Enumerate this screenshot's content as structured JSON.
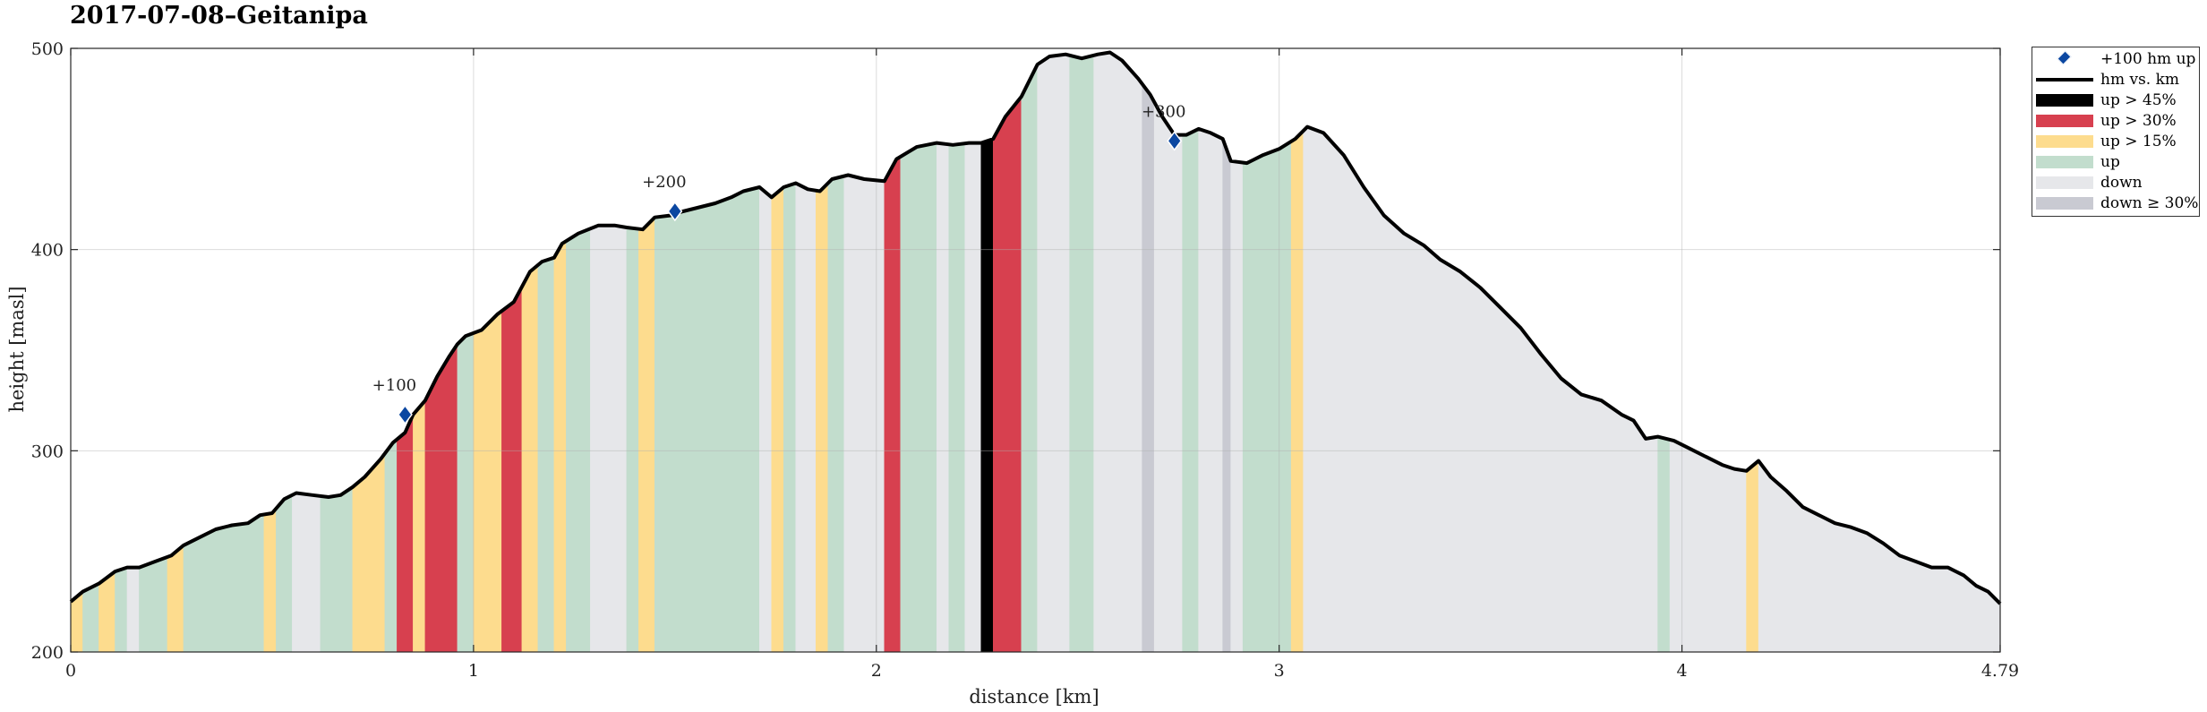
{
  "chart_data": {
    "type": "area",
    "title": "2017-07-08–Geitanipa",
    "xlabel": "distance [km]",
    "ylabel": "height [masl]",
    "xlim": [
      0,
      4.79
    ],
    "ylim": [
      200,
      500
    ],
    "xticks": [
      "0",
      "1",
      "2",
      "3",
      "4",
      "4.79"
    ],
    "xtick_values": [
      0,
      1,
      2,
      3,
      4,
      4.79
    ],
    "yticks": [
      "200",
      "300",
      "400",
      "500"
    ],
    "ytick_values": [
      200,
      300,
      400,
      500
    ],
    "grid": true,
    "legend_position": "outside-top-right",
    "colors": {
      "up45": "#000000",
      "up30": "#d7404f",
      "up15": "#fddc8e",
      "up": "#c2ddcd",
      "down": "#e6e7ea",
      "down30": "#c9cad2",
      "line": "#000000",
      "marker": "#0b47a1"
    },
    "legend": [
      {
        "key": "marker",
        "label": "+100 hm up"
      },
      {
        "key": "line",
        "label": "hm vs. km"
      },
      {
        "key": "up45",
        "label": "up > 45%"
      },
      {
        "key": "up30",
        "label": "up > 30%"
      },
      {
        "key": "up15",
        "label": "up > 15%"
      },
      {
        "key": "up",
        "label": "up"
      },
      {
        "key": "down",
        "label": "down"
      },
      {
        "key": "down30",
        "label": "down ≥ 30%"
      }
    ],
    "profile": [
      [
        0,
        225
      ],
      [
        0.03,
        230
      ],
      [
        0.07,
        234
      ],
      [
        0.11,
        240
      ],
      [
        0.14,
        242
      ],
      [
        0.17,
        242
      ],
      [
        0.21,
        245
      ],
      [
        0.25,
        248
      ],
      [
        0.28,
        253
      ],
      [
        0.32,
        257
      ],
      [
        0.36,
        261
      ],
      [
        0.4,
        263
      ],
      [
        0.44,
        264
      ],
      [
        0.47,
        268
      ],
      [
        0.5,
        269
      ],
      [
        0.53,
        276
      ],
      [
        0.56,
        279
      ],
      [
        0.6,
        278
      ],
      [
        0.64,
        277
      ],
      [
        0.67,
        278
      ],
      [
        0.7,
        282
      ],
      [
        0.73,
        287
      ],
      [
        0.77,
        296
      ],
      [
        0.8,
        304
      ],
      [
        0.83,
        309
      ],
      [
        0.85,
        318
      ],
      [
        0.88,
        325
      ],
      [
        0.91,
        337
      ],
      [
        0.94,
        347
      ],
      [
        0.96,
        353
      ],
      [
        0.98,
        357
      ],
      [
        1.02,
        360
      ],
      [
        1.06,
        368
      ],
      [
        1.1,
        374
      ],
      [
        1.14,
        389
      ],
      [
        1.17,
        394
      ],
      [
        1.2,
        396
      ],
      [
        1.22,
        403
      ],
      [
        1.26,
        408
      ],
      [
        1.31,
        412
      ],
      [
        1.35,
        412
      ],
      [
        1.38,
        411
      ],
      [
        1.42,
        410
      ],
      [
        1.45,
        416
      ],
      [
        1.49,
        417
      ],
      [
        1.52,
        419
      ],
      [
        1.56,
        421
      ],
      [
        1.6,
        423
      ],
      [
        1.64,
        426
      ],
      [
        1.67,
        429
      ],
      [
        1.71,
        431
      ],
      [
        1.74,
        426
      ],
      [
        1.77,
        431
      ],
      [
        1.8,
        433
      ],
      [
        1.83,
        430
      ],
      [
        1.86,
        429
      ],
      [
        1.89,
        435
      ],
      [
        1.93,
        437
      ],
      [
        1.97,
        435
      ],
      [
        2.02,
        434
      ],
      [
        2.05,
        445
      ],
      [
        2.1,
        451
      ],
      [
        2.15,
        453
      ],
      [
        2.19,
        452
      ],
      [
        2.23,
        453
      ],
      [
        2.26,
        453
      ],
      [
        2.29,
        455
      ],
      [
        2.32,
        466
      ],
      [
        2.36,
        476
      ],
      [
        2.4,
        492
      ],
      [
        2.43,
        496
      ],
      [
        2.47,
        497
      ],
      [
        2.51,
        495
      ],
      [
        2.55,
        497
      ],
      [
        2.58,
        498
      ],
      [
        2.61,
        494
      ],
      [
        2.65,
        485
      ],
      [
        2.68,
        477
      ],
      [
        2.71,
        466
      ],
      [
        2.74,
        457
      ],
      [
        2.77,
        457
      ],
      [
        2.8,
        460
      ],
      [
        2.83,
        458
      ],
      [
        2.86,
        455
      ],
      [
        2.88,
        444
      ],
      [
        2.92,
        443
      ],
      [
        2.96,
        447
      ],
      [
        3.0,
        450
      ],
      [
        3.04,
        455
      ],
      [
        3.07,
        461
      ],
      [
        3.11,
        458
      ],
      [
        3.16,
        447
      ],
      [
        3.21,
        431
      ],
      [
        3.26,
        417
      ],
      [
        3.31,
        408
      ],
      [
        3.36,
        402
      ],
      [
        3.4,
        395
      ],
      [
        3.45,
        389
      ],
      [
        3.5,
        381
      ],
      [
        3.55,
        371
      ],
      [
        3.6,
        361
      ],
      [
        3.65,
        348
      ],
      [
        3.7,
        336
      ],
      [
        3.75,
        328
      ],
      [
        3.8,
        325
      ],
      [
        3.85,
        318
      ],
      [
        3.88,
        315
      ],
      [
        3.91,
        306
      ],
      [
        3.94,
        307
      ],
      [
        3.98,
        305
      ],
      [
        4.02,
        301
      ],
      [
        4.06,
        297
      ],
      [
        4.1,
        293
      ],
      [
        4.13,
        291
      ],
      [
        4.16,
        290
      ],
      [
        4.19,
        295
      ],
      [
        4.22,
        287
      ],
      [
        4.26,
        280
      ],
      [
        4.3,
        272
      ],
      [
        4.34,
        268
      ],
      [
        4.38,
        264
      ],
      [
        4.42,
        262
      ],
      [
        4.46,
        259
      ],
      [
        4.5,
        254
      ],
      [
        4.54,
        248
      ],
      [
        4.58,
        245
      ],
      [
        4.62,
        242
      ],
      [
        4.66,
        242
      ],
      [
        4.7,
        238
      ],
      [
        4.73,
        233
      ],
      [
        4.76,
        230
      ],
      [
        4.79,
        224
      ]
    ],
    "segments": [
      {
        "x0": 0.0,
        "x1": 0.03,
        "class": "up15"
      },
      {
        "x0": 0.03,
        "x1": 0.07,
        "class": "up"
      },
      {
        "x0": 0.07,
        "x1": 0.11,
        "class": "up15"
      },
      {
        "x0": 0.11,
        "x1": 0.14,
        "class": "up"
      },
      {
        "x0": 0.14,
        "x1": 0.17,
        "class": "down"
      },
      {
        "x0": 0.17,
        "x1": 0.24,
        "class": "up"
      },
      {
        "x0": 0.24,
        "x1": 0.28,
        "class": "up15"
      },
      {
        "x0": 0.28,
        "x1": 0.48,
        "class": "up"
      },
      {
        "x0": 0.48,
        "x1": 0.51,
        "class": "up15"
      },
      {
        "x0": 0.51,
        "x1": 0.55,
        "class": "up"
      },
      {
        "x0": 0.55,
        "x1": 0.62,
        "class": "down"
      },
      {
        "x0": 0.62,
        "x1": 0.7,
        "class": "up"
      },
      {
        "x0": 0.7,
        "x1": 0.78,
        "class": "up15"
      },
      {
        "x0": 0.78,
        "x1": 0.81,
        "class": "up"
      },
      {
        "x0": 0.81,
        "x1": 0.85,
        "class": "up30"
      },
      {
        "x0": 0.85,
        "x1": 0.88,
        "class": "up15"
      },
      {
        "x0": 0.88,
        "x1": 0.96,
        "class": "up30"
      },
      {
        "x0": 0.96,
        "x1": 1.0,
        "class": "up"
      },
      {
        "x0": 1.0,
        "x1": 1.07,
        "class": "up15"
      },
      {
        "x0": 1.07,
        "x1": 1.12,
        "class": "up30"
      },
      {
        "x0": 1.12,
        "x1": 1.16,
        "class": "up15"
      },
      {
        "x0": 1.16,
        "x1": 1.2,
        "class": "up"
      },
      {
        "x0": 1.2,
        "x1": 1.23,
        "class": "up15"
      },
      {
        "x0": 1.23,
        "x1": 1.29,
        "class": "up"
      },
      {
        "x0": 1.29,
        "x1": 1.38,
        "class": "down"
      },
      {
        "x0": 1.38,
        "x1": 1.41,
        "class": "up"
      },
      {
        "x0": 1.41,
        "x1": 1.45,
        "class": "up15"
      },
      {
        "x0": 1.45,
        "x1": 1.71,
        "class": "up"
      },
      {
        "x0": 1.71,
        "x1": 1.74,
        "class": "down"
      },
      {
        "x0": 1.74,
        "x1": 1.77,
        "class": "up15"
      },
      {
        "x0": 1.77,
        "x1": 1.8,
        "class": "up"
      },
      {
        "x0": 1.8,
        "x1": 1.85,
        "class": "down"
      },
      {
        "x0": 1.85,
        "x1": 1.88,
        "class": "up15"
      },
      {
        "x0": 1.88,
        "x1": 1.92,
        "class": "up"
      },
      {
        "x0": 1.92,
        "x1": 2.02,
        "class": "down"
      },
      {
        "x0": 2.02,
        "x1": 2.06,
        "class": "up30"
      },
      {
        "x0": 2.06,
        "x1": 2.15,
        "class": "up"
      },
      {
        "x0": 2.15,
        "x1": 2.18,
        "class": "down"
      },
      {
        "x0": 2.18,
        "x1": 2.22,
        "class": "up"
      },
      {
        "x0": 2.22,
        "x1": 2.26,
        "class": "down"
      },
      {
        "x0": 2.26,
        "x1": 2.29,
        "class": "up45"
      },
      {
        "x0": 2.29,
        "x1": 2.36,
        "class": "up30"
      },
      {
        "x0": 2.36,
        "x1": 2.4,
        "class": "up"
      },
      {
        "x0": 2.4,
        "x1": 2.48,
        "class": "down"
      },
      {
        "x0": 2.48,
        "x1": 2.54,
        "class": "up"
      },
      {
        "x0": 2.54,
        "x1": 2.66,
        "class": "down"
      },
      {
        "x0": 2.66,
        "x1": 2.69,
        "class": "down30"
      },
      {
        "x0": 2.69,
        "x1": 2.76,
        "class": "down"
      },
      {
        "x0": 2.76,
        "x1": 2.8,
        "class": "up"
      },
      {
        "x0": 2.8,
        "x1": 2.86,
        "class": "down"
      },
      {
        "x0": 2.86,
        "x1": 2.88,
        "class": "down30"
      },
      {
        "x0": 2.88,
        "x1": 2.91,
        "class": "down"
      },
      {
        "x0": 2.91,
        "x1": 3.03,
        "class": "up"
      },
      {
        "x0": 3.03,
        "x1": 3.06,
        "class": "up15"
      },
      {
        "x0": 3.06,
        "x1": 3.94,
        "class": "down"
      },
      {
        "x0": 3.94,
        "x1": 3.97,
        "class": "up"
      },
      {
        "x0": 3.97,
        "x1": 4.16,
        "class": "down"
      },
      {
        "x0": 4.16,
        "x1": 4.19,
        "class": "up15"
      },
      {
        "x0": 4.19,
        "x1": 4.79,
        "class": "down"
      }
    ],
    "milestones": [
      {
        "label": "+100",
        "x": 0.83,
        "y": 318
      },
      {
        "label": "+200",
        "x": 1.5,
        "y": 419
      },
      {
        "label": "+300",
        "x": 2.74,
        "y": 454
      }
    ]
  }
}
